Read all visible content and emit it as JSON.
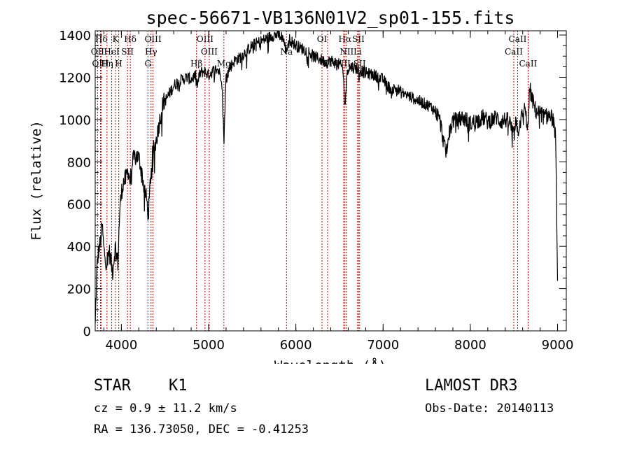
{
  "chart_data": {
    "type": "line",
    "title": "spec-56671-VB136N01V2_sp01-155.fits",
    "xlabel": "Wavelength (Å)",
    "ylabel": "Flux (relative)",
    "xlim": [
      3700,
      9100
    ],
    "ylim": [
      0,
      1420
    ],
    "xticks": [
      4000,
      5000,
      6000,
      7000,
      8000,
      9000
    ],
    "xtick_labels": [
      "4000",
      "5000",
      "6000",
      "7000",
      "8000",
      "9000"
    ],
    "yticks": [
      0,
      200,
      400,
      600,
      800,
      1000,
      1200,
      1400
    ],
    "ytick_labels": [
      "0",
      "200",
      "400",
      "600",
      "800",
      "1000",
      "1200",
      "1400"
    ],
    "line_color": "#000000",
    "marker_color": "#cc0000",
    "spectrum_anchors": [
      [
        3700,
        20
      ],
      [
        3720,
        300
      ],
      [
        3740,
        380
      ],
      [
        3760,
        420
      ],
      [
        3780,
        500
      ],
      [
        3800,
        380
      ],
      [
        3830,
        320
      ],
      [
        3860,
        380
      ],
      [
        3880,
        330
      ],
      [
        3900,
        280
      ],
      [
        3930,
        400
      ],
      [
        3960,
        320
      ],
      [
        3980,
        560
      ],
      [
        4000,
        650
      ],
      [
        4020,
        700
      ],
      [
        4050,
        720
      ],
      [
        4080,
        760
      ],
      [
        4100,
        700
      ],
      [
        4130,
        800
      ],
      [
        4160,
        830
      ],
      [
        4200,
        820
      ],
      [
        4230,
        760
      ],
      [
        4260,
        680
      ],
      [
        4290,
        620
      ],
      [
        4310,
        540
      ],
      [
        4330,
        700
      ],
      [
        4360,
        850
      ],
      [
        4390,
        880
      ],
      [
        4420,
        950
      ],
      [
        4450,
        1020
      ],
      [
        4480,
        1080
      ],
      [
        4520,
        1100
      ],
      [
        4560,
        1130
      ],
      [
        4600,
        1160
      ],
      [
        4650,
        1180
      ],
      [
        4700,
        1190
      ],
      [
        4750,
        1200
      ],
      [
        4800,
        1190
      ],
      [
        4850,
        1210
      ],
      [
        4870,
        1160
      ],
      [
        4900,
        1220
      ],
      [
        4950,
        1230
      ],
      [
        5000,
        1210
      ],
      [
        5050,
        1230
      ],
      [
        5100,
        1240
      ],
      [
        5150,
        1200
      ],
      [
        5175,
        900
      ],
      [
        5200,
        1200
      ],
      [
        5250,
        1250
      ],
      [
        5300,
        1280
      ],
      [
        5350,
        1290
      ],
      [
        5400,
        1310
      ],
      [
        5450,
        1330
      ],
      [
        5500,
        1350
      ],
      [
        5550,
        1360
      ],
      [
        5600,
        1370
      ],
      [
        5650,
        1380
      ],
      [
        5700,
        1390
      ],
      [
        5750,
        1400
      ],
      [
        5800,
        1400
      ],
      [
        5850,
        1390
      ],
      [
        5890,
        1320
      ],
      [
        5920,
        1380
      ],
      [
        5950,
        1370
      ],
      [
        6000,
        1350
      ],
      [
        6050,
        1340
      ],
      [
        6100,
        1330
      ],
      [
        6150,
        1320
      ],
      [
        6200,
        1300
      ],
      [
        6250,
        1290
      ],
      [
        6300,
        1280
      ],
      [
        6350,
        1270
      ],
      [
        6400,
        1280
      ],
      [
        6450,
        1270
      ],
      [
        6500,
        1260
      ],
      [
        6540,
        1240
      ],
      [
        6563,
        1060
      ],
      [
        6590,
        1240
      ],
      [
        6640,
        1250
      ],
      [
        6700,
        1240
      ],
      [
        6750,
        1230
      ],
      [
        6800,
        1220
      ],
      [
        6850,
        1215
      ],
      [
        6900,
        1210
      ],
      [
        6950,
        1200
      ],
      [
        7000,
        1190
      ],
      [
        7050,
        1160
      ],
      [
        7100,
        1140
      ],
      [
        7150,
        1150
      ],
      [
        7200,
        1130
      ],
      [
        7250,
        1120
      ],
      [
        7300,
        1110
      ],
      [
        7350,
        1100
      ],
      [
        7400,
        1090
      ],
      [
        7450,
        1080
      ],
      [
        7500,
        1070
      ],
      [
        7550,
        1060
      ],
      [
        7600,
        1040
      ],
      [
        7650,
        1000
      ],
      [
        7700,
        880
      ],
      [
        7720,
        840
      ],
      [
        7750,
        920
      ],
      [
        7800,
        1000
      ],
      [
        7850,
        990
      ],
      [
        7900,
        1010
      ],
      [
        7950,
        1000
      ],
      [
        8000,
        980
      ],
      [
        8050,
        990
      ],
      [
        8100,
        1000
      ],
      [
        8150,
        1010
      ],
      [
        8200,
        990
      ],
      [
        8250,
        1000
      ],
      [
        8300,
        1010
      ],
      [
        8350,
        990
      ],
      [
        8400,
        1000
      ],
      [
        8450,
        990
      ],
      [
        8498,
        920
      ],
      [
        8520,
        980
      ],
      [
        8542,
        940
      ],
      [
        8580,
        1000
      ],
      [
        8620,
        1050
      ],
      [
        8662,
        960
      ],
      [
        8680,
        1150
      ],
      [
        8700,
        1110
      ],
      [
        8750,
        1040
      ],
      [
        8800,
        1030
      ],
      [
        8850,
        1010
      ],
      [
        8900,
        1020
      ],
      [
        8950,
        1000
      ],
      [
        8980,
        900
      ],
      [
        9000,
        200
      ]
    ],
    "line_markers": [
      {
        "label": "Hδ",
        "x": 3770,
        "row": 0
      },
      {
        "label": "K",
        "x": 3934,
        "row": 0
      },
      {
        "label": "Hδ",
        "x": 4102,
        "row": 0
      },
      {
        "label": "OIII",
        "x": 4363,
        "row": 0
      },
      {
        "label": "OIII",
        "x": 4959,
        "row": 0
      },
      {
        "label": "OI",
        "x": 6300,
        "row": 0
      },
      {
        "label": "Hα",
        "x": 6563,
        "row": 0
      },
      {
        "label": "SII",
        "x": 6717,
        "row": 0
      },
      {
        "label": "CaII",
        "x": 8542,
        "row": 0
      },
      {
        "label": "OII",
        "x": 3727,
        "row": 1
      },
      {
        "label": "HeI",
        "x": 3889,
        "row": 1
      },
      {
        "label": "SII",
        "x": 4070,
        "row": 1
      },
      {
        "label": "Hγ",
        "x": 4340,
        "row": 1
      },
      {
        "label": "OIII",
        "x": 5007,
        "row": 1
      },
      {
        "label": "Na",
        "x": 5893,
        "row": 1
      },
      {
        "label": "NII",
        "x": 6583,
        "row": 1
      },
      {
        "label": "Li",
        "x": 6708,
        "row": 1
      },
      {
        "label": "CaII",
        "x": 8498,
        "row": 1
      },
      {
        "label": "OIII",
        "x": 3760,
        "row": 2
      },
      {
        "label": "Hη",
        "x": 3835,
        "row": 2
      },
      {
        "label": "H",
        "x": 3970,
        "row": 2
      },
      {
        "label": "G",
        "x": 4304,
        "row": 2
      },
      {
        "label": "Hβ",
        "x": 4861,
        "row": 2
      },
      {
        "label": "Mg",
        "x": 5175,
        "row": 2
      },
      {
        "label": "OI",
        "x": 6364,
        "row": 2
      },
      {
        "label": "NII",
        "x": 6548,
        "row": 2
      },
      {
        "label": "SII",
        "x": 6731,
        "row": 2
      },
      {
        "label": "CaII",
        "x": 8662,
        "row": 2
      }
    ]
  },
  "info": {
    "star_label": "STAR",
    "spectral_class": "K1",
    "survey": "LAMOST DR3",
    "cz": "cz = 0.9 ± 11.2 km/s",
    "obs_date": "Obs-Date: 20140113",
    "radec": "RA = 136.73050, DEC =  -0.41253"
  }
}
